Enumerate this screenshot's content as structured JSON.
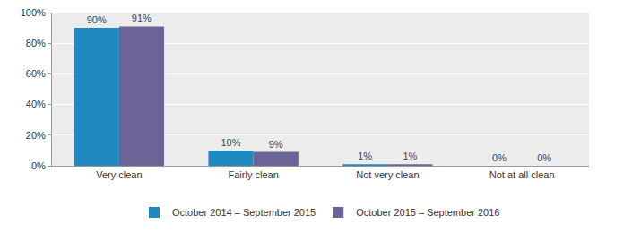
{
  "chart_data": {
    "type": "bar",
    "categories": [
      "Very clean",
      "Fairly clean",
      "Not very clean",
      "Not at all clean"
    ],
    "series": [
      {
        "name": "October 2014 – September 2015",
        "color": "#1f8ac0",
        "values": [
          90,
          10,
          1,
          0
        ],
        "value_labels": [
          "90%",
          "10%",
          "1%",
          "0%"
        ]
      },
      {
        "name": "October 2015 – September 2016",
        "color": "#6b6499",
        "values": [
          91,
          9,
          1,
          0
        ],
        "value_labels": [
          "91%",
          "9%",
          "1%",
          "0%"
        ]
      }
    ],
    "ylim": [
      0,
      100
    ],
    "yticks": [
      {
        "value": 0,
        "label": "0%"
      },
      {
        "value": 20,
        "label": "20%"
      },
      {
        "value": 40,
        "label": "40%"
      },
      {
        "value": 60,
        "label": "60%"
      },
      {
        "value": 80,
        "label": "80%"
      },
      {
        "value": 100,
        "label": "100%"
      }
    ],
    "grid": true,
    "legend": "bottom",
    "data_labels": true
  }
}
